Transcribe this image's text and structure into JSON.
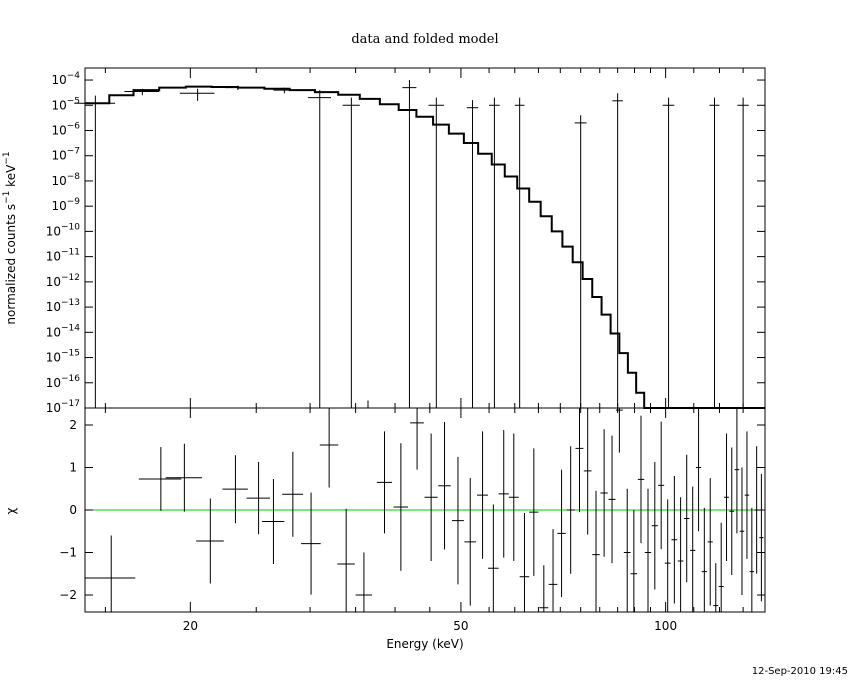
{
  "chart_data": [
    {
      "type": "line",
      "title": "data and folded model",
      "ylabel": "normalized counts s",
      "ylabel_sup1": "−1",
      "ylabel_mid": " keV",
      "ylabel_sup2": "−1",
      "xscale": "log",
      "yscale": "log",
      "xlim": [
        14,
        140
      ],
      "ylim": [
        1e-17,
        0.0003
      ],
      "ytick_exponents": [
        -4,
        -5,
        -6,
        -7,
        -8,
        -9,
        -10,
        -11,
        -12,
        -13,
        -14,
        -15,
        -16,
        -17
      ],
      "ytick_base": "10",
      "series": [
        {
          "type": "step",
          "x": [
            14,
            15.2,
            16.5,
            18,
            19.7,
            21.5,
            23.5,
            25.7,
            28,
            30.5,
            33,
            35.5,
            38,
            40.5,
            43,
            45.5,
            48,
            50.5,
            53,
            55.5,
            58,
            60.5,
            63,
            65.5,
            68,
            70.5,
            73,
            75.5,
            78,
            80.5,
            83,
            85.5,
            88,
            90.5,
            93,
            95.5,
            98,
            101,
            104,
            107,
            110,
            113,
            116,
            119,
            122,
            125,
            128,
            131,
            134,
            137,
            140
          ],
          "y": [
            1.2e-05,
            2.5e-05,
            4e-05,
            5e-05,
            5.5e-05,
            5.3e-05,
            5e-05,
            4.5e-05,
            4e-05,
            3.3e-05,
            2.6e-05,
            1.8e-05,
            1.1e-05,
            6.5e-06,
            3.5e-06,
            1.7e-06,
            7.5e-07,
            3.2e-07,
            1.2e-07,
            4.5e-08,
            1.5e-08,
            5e-09,
            1.5e-09,
            4e-10,
            1e-10,
            2.5e-11,
            6e-12,
            1.3e-12,
            2.5e-13,
            5e-14,
            9e-15,
            1.5e-15,
            2.5e-16,
            4e-17,
            1e-17,
            1e-17,
            1e-17,
            1e-17,
            1e-17,
            1e-17,
            1e-17,
            1e-17,
            1e-17,
            1e-17,
            1e-17,
            1e-17,
            1e-17,
            1e-17,
            1e-17,
            1e-17,
            1e-17
          ]
        }
      ],
      "points": [
        {
          "x": 14.5,
          "xerr": 1.0,
          "y": 1.2e-05,
          "yerr": "full"
        },
        {
          "x": 17,
          "xerr": 1.0,
          "y": 3.5e-05,
          "yerr": 1e-05
        },
        {
          "x": 20.5,
          "xerr": 1.2,
          "y": 3e-05,
          "yerr": 1.5e-05
        },
        {
          "x": 23.5,
          "xerr": 1.0,
          "y": 5e-05,
          "yerr": 1e-05
        },
        {
          "x": 27.5,
          "xerr": 1.0,
          "y": 4e-05,
          "yerr": 1e-05
        },
        {
          "x": 31,
          "xerr": 1.2,
          "y": 2e-05,
          "yerr": "full"
        },
        {
          "x": 34.5,
          "xerr": 1.0,
          "y": 1e-05,
          "yerr": "full"
        },
        {
          "x": 36.5,
          "xerr": 0.8,
          "y": 1e-17,
          "yerr": "full"
        },
        {
          "x": 42,
          "xerr": 1.0,
          "y": 5e-05,
          "yerr": "full"
        },
        {
          "x": 46,
          "xerr": 1.2,
          "y": 1e-05,
          "yerr": "full"
        },
        {
          "x": 52,
          "xerr": 1.0,
          "y": 8e-06,
          "yerr": "full"
        },
        {
          "x": 56,
          "xerr": 1.0,
          "y": 1e-05,
          "yerr": "full"
        },
        {
          "x": 61,
          "xerr": 1.0,
          "y": 1e-05,
          "yerr": "full"
        },
        {
          "x": 75,
          "xerr": 1.5,
          "y": 2e-06,
          "yerr": "full"
        },
        {
          "x": 85,
          "xerr": 1.5,
          "y": 1.5e-05,
          "yerr": "full"
        },
        {
          "x": 101,
          "xerr": 2.0,
          "y": 1e-05,
          "yerr": "full"
        },
        {
          "x": 118,
          "xerr": 2.0,
          "y": 1e-05,
          "yerr": "full"
        },
        {
          "x": 130,
          "xerr": 2.5,
          "y": 1e-05,
          "yerr": "full"
        }
      ]
    },
    {
      "type": "scatter",
      "ylabel": "χ",
      "xlabel": "Energy (keV)",
      "xscale": "log",
      "xlim": [
        14,
        140
      ],
      "ylim": [
        -2.4,
        2.4
      ],
      "xticks": [
        20,
        50,
        100
      ],
      "yticks": [
        -2,
        -1,
        0,
        1,
        2
      ],
      "zero_line_color": "#00cc00",
      "points": [
        {
          "x": 15.3,
          "xerr": 1.3,
          "y": -1.6,
          "yerr": 1.0
        },
        {
          "x": 18.1,
          "xerr": 1.3,
          "y": 0.73,
          "yerr": 0.75
        },
        {
          "x": 19.6,
          "xerr": 1.2,
          "y": 0.76,
          "yerr": 0.8
        },
        {
          "x": 21.4,
          "xerr": 1.0,
          "y": -0.73,
          "yerr": 1.0
        },
        {
          "x": 23.3,
          "xerr": 1.0,
          "y": 0.49,
          "yerr": 0.8
        },
        {
          "x": 25.2,
          "xerr": 1.0,
          "y": 0.28,
          "yerr": 0.85
        },
        {
          "x": 26.5,
          "xerr": 1.0,
          "y": -0.27,
          "yerr": 1.0
        },
        {
          "x": 28.3,
          "xerr": 1.0,
          "y": 0.37,
          "yerr": 1.0
        },
        {
          "x": 30.1,
          "xerr": 1.0,
          "y": -0.79,
          "yerr": 1.2
        },
        {
          "x": 32.0,
          "xerr": 1.0,
          "y": 1.53,
          "yerr": 1.0
        },
        {
          "x": 33.9,
          "xerr": 1.0,
          "y": -1.27,
          "yerr": 1.3
        },
        {
          "x": 36.0,
          "xerr": 1.0,
          "y": -2.0,
          "yerr": 1.0
        },
        {
          "x": 38.6,
          "xerr": 1.0,
          "y": 0.65,
          "yerr": 1.2
        },
        {
          "x": 40.8,
          "xerr": 1.0,
          "y": 0.07,
          "yerr": 1.5
        },
        {
          "x": 43.1,
          "xerr": 1.0,
          "y": 2.05,
          "yerr": 1.1
        },
        {
          "x": 45.2,
          "xerr": 1.0,
          "y": 0.3,
          "yerr": 1.5
        },
        {
          "x": 47.3,
          "xerr": 1.0,
          "y": 0.57,
          "yerr": 1.5
        },
        {
          "x": 49.5,
          "xerr": 1.0,
          "y": -0.25,
          "yerr": 1.5
        },
        {
          "x": 51.6,
          "xerr": 1.0,
          "y": -0.75,
          "yerr": 1.5
        },
        {
          "x": 53.8,
          "xerr": 1.0,
          "y": 0.35,
          "yerr": 1.5
        },
        {
          "x": 55.8,
          "xerr": 1.0,
          "y": -1.37,
          "yerr": 1.5
        },
        {
          "x": 57.8,
          "xerr": 1.0,
          "y": 0.38,
          "yerr": 1.5
        },
        {
          "x": 59.8,
          "xerr": 1.0,
          "y": 0.3,
          "yerr": 1.5
        },
        {
          "x": 62.0,
          "xerr": 1.0,
          "y": -1.57,
          "yerr": 1.5
        },
        {
          "x": 64.0,
          "xerr": 1.0,
          "y": -0.05,
          "yerr": 1.5
        },
        {
          "x": 66.2,
          "xerr": 1.0,
          "y": -2.3,
          "yerr": 1.0
        },
        {
          "x": 68.3,
          "xerr": 1.0,
          "y": -1.75,
          "yerr": 1.3
        },
        {
          "x": 70.3,
          "xerr": 1.0,
          "y": -0.55,
          "yerr": 1.5
        },
        {
          "x": 72.5,
          "xerr": 1.0,
          "y": 0.0,
          "yerr": 1.5
        },
        {
          "x": 74.7,
          "xerr": 1.0,
          "y": 1.45,
          "yerr": 1.5
        },
        {
          "x": 76.8,
          "xerr": 1.0,
          "y": 0.92,
          "yerr": 1.5
        },
        {
          "x": 79.0,
          "xerr": 1.0,
          "y": -1.05,
          "yerr": 1.5
        },
        {
          "x": 81.2,
          "xerr": 1.0,
          "y": 0.4,
          "yerr": 1.5
        },
        {
          "x": 83.4,
          "xerr": 1.0,
          "y": 0.25,
          "yerr": 1.5
        },
        {
          "x": 85.5,
          "xerr": 1.0,
          "y": 2.35,
          "yerr": 1.0
        },
        {
          "x": 87.8,
          "xerr": 1.0,
          "y": -1.0,
          "yerr": 1.5
        },
        {
          "x": 89.8,
          "xerr": 1.0,
          "y": -1.5,
          "yerr": 1.5
        },
        {
          "x": 92.0,
          "xerr": 1.0,
          "y": 0.72,
          "yerr": 1.5
        },
        {
          "x": 94.2,
          "xerr": 1.0,
          "y": -1.0,
          "yerr": 1.5
        },
        {
          "x": 96.4,
          "xerr": 1.0,
          "y": -0.37,
          "yerr": 1.5
        },
        {
          "x": 98.5,
          "xerr": 1.0,
          "y": 0.58,
          "yerr": 1.5
        },
        {
          "x": 100.7,
          "xerr": 1.0,
          "y": -1.25,
          "yerr": 1.5
        },
        {
          "x": 103.0,
          "xerr": 1.0,
          "y": -0.7,
          "yerr": 1.5
        },
        {
          "x": 105.2,
          "xerr": 1.0,
          "y": -1.2,
          "yerr": 1.5
        },
        {
          "x": 107.4,
          "xerr": 1.0,
          "y": -0.2,
          "yerr": 1.5
        },
        {
          "x": 109.6,
          "xerr": 1.0,
          "y": -0.95,
          "yerr": 1.5
        },
        {
          "x": 111.8,
          "xerr": 1.0,
          "y": 1.0,
          "yerr": 1.5
        },
        {
          "x": 114.0,
          "xerr": 1.0,
          "y": -1.45,
          "yerr": 1.5
        },
        {
          "x": 116.3,
          "xerr": 1.0,
          "y": -0.75,
          "yerr": 1.5
        },
        {
          "x": 118.5,
          "xerr": 1.0,
          "y": -2.25,
          "yerr": 1.0
        },
        {
          "x": 120.7,
          "xerr": 1.0,
          "y": -1.8,
          "yerr": 1.5
        },
        {
          "x": 122.9,
          "xerr": 1.0,
          "y": 0.3,
          "yerr": 1.5
        },
        {
          "x": 125.1,
          "xerr": 1.0,
          "y": -0.03,
          "yerr": 1.5
        },
        {
          "x": 127.3,
          "xerr": 1.0,
          "y": 0.95,
          "yerr": 1.5
        },
        {
          "x": 129.5,
          "xerr": 1.0,
          "y": -0.5,
          "yerr": 1.5
        },
        {
          "x": 131.7,
          "xerr": 1.0,
          "y": 0.35,
          "yerr": 1.5
        },
        {
          "x": 133.9,
          "xerr": 1.0,
          "y": -1.45,
          "yerr": 1.5
        },
        {
          "x": 136.1,
          "xerr": 1.0,
          "y": 0.0,
          "yerr": 1.5
        },
        {
          "x": 138.3,
          "xerr": 1.0,
          "y": -0.65,
          "yerr": 1.5
        }
      ]
    }
  ],
  "timestamp": "12-Sep-2010 19:45"
}
